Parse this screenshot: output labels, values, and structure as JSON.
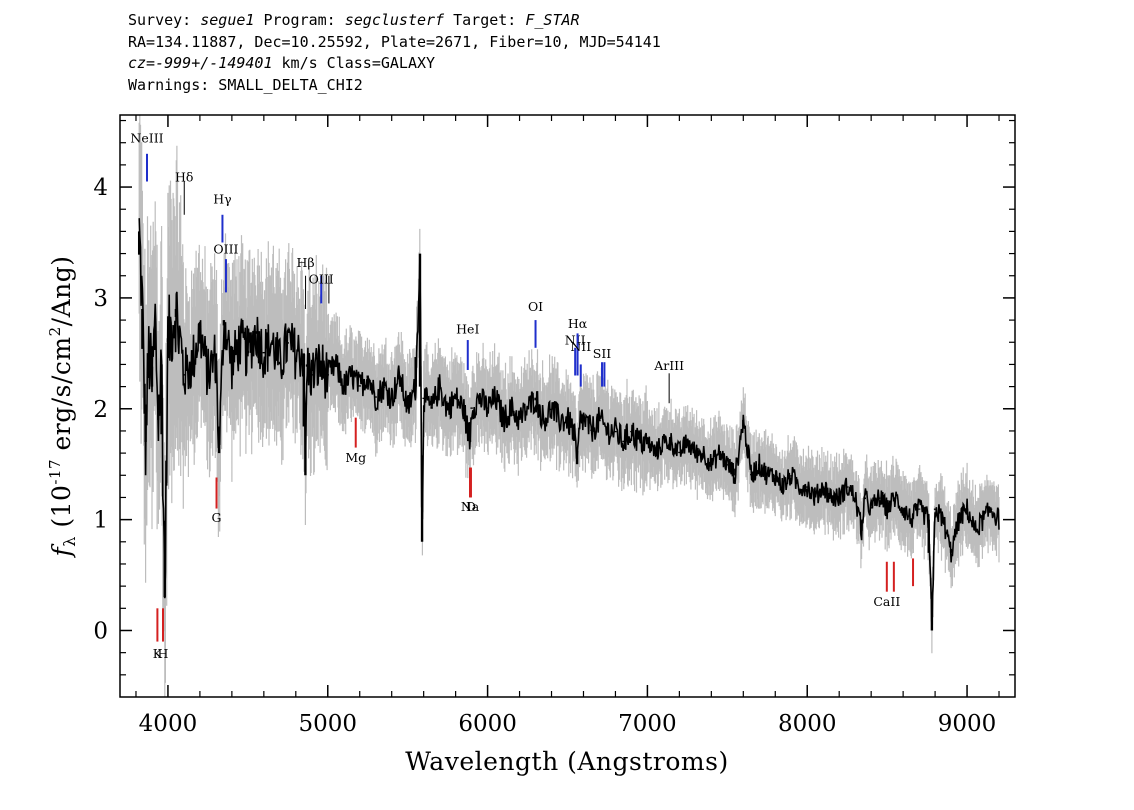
{
  "header": {
    "survey_label": "Survey: ",
    "survey": "segue1",
    "program_label": " Program: ",
    "program": "segclusterf",
    "target_label": " Target: ",
    "target": "F_STAR",
    "line2": "RA=134.11887, Dec=10.25592, Plate=2671, Fiber=10, MJD=54141",
    "cz": "cz=-999+/-149401",
    "cz_rest": " km/s Class=GALAXY",
    "warnings": "Warnings: SMALL_DELTA_CHI2"
  },
  "colors": {
    "flux": "#000000",
    "error": "#bdbdbd",
    "emission": "#1f2fcc",
    "absorption": "#d42020",
    "neutral": "#000000"
  },
  "chart_data": {
    "type": "line",
    "title": "",
    "xlabel": "Wavelength (Angstroms)",
    "ylabel": "f_λ (10^-17 erg/s/cm^2/Ang)",
    "xlim": [
      3700,
      9300
    ],
    "ylim": [
      -0.6,
      4.65
    ],
    "xticks": [
      4000,
      5000,
      6000,
      7000,
      8000,
      9000
    ],
    "yticks": [
      0,
      1,
      2,
      3,
      4
    ],
    "series": [
      {
        "role": "flux",
        "x": [
          3820,
          3840,
          3860,
          3880,
          3900,
          3920,
          3940,
          3960,
          3980,
          4000,
          4050,
          4100,
          4150,
          4200,
          4250,
          4300,
          4320,
          4350,
          4400,
          4450,
          4500,
          4550,
          4600,
          4650,
          4700,
          4750,
          4800,
          4850,
          4860,
          4870,
          4900,
          4950,
          5000,
          5050,
          5100,
          5150,
          5200,
          5250,
          5300,
          5350,
          5400,
          5450,
          5500,
          5550,
          5577,
          5590,
          5600,
          5650,
          5700,
          5750,
          5800,
          5850,
          5890,
          5900,
          5950,
          6000,
          6050,
          6100,
          6150,
          6200,
          6250,
          6300,
          6350,
          6400,
          6450,
          6500,
          6540,
          6560,
          6580,
          6600,
          6650,
          6700,
          6750,
          6800,
          6850,
          6900,
          6950,
          7000,
          7050,
          7100,
          7150,
          7200,
          7250,
          7300,
          7350,
          7400,
          7450,
          7500,
          7550,
          7600,
          7650,
          7700,
          7750,
          7800,
          7850,
          7900,
          7950,
          8000,
          8050,
          8100,
          8150,
          8200,
          8250,
          8300,
          8340,
          8360,
          8400,
          8450,
          8500,
          8550,
          8600,
          8650,
          8700,
          8760,
          8780,
          8800,
          8850,
          8900,
          8950,
          9000,
          9050,
          9100,
          9150,
          9200
        ],
        "y": [
          3.6,
          2.9,
          1.7,
          2.5,
          2.2,
          2.8,
          1.9,
          2.4,
          0.3,
          2.6,
          2.9,
          2.3,
          2.4,
          2.7,
          2.3,
          2.5,
          1.6,
          2.8,
          2.4,
          2.6,
          2.5,
          2.7,
          2.5,
          2.6,
          2.4,
          2.6,
          2.5,
          2.5,
          1.4,
          2.4,
          2.3,
          2.4,
          2.3,
          2.4,
          2.2,
          2.3,
          2.2,
          2.3,
          2.1,
          2.2,
          2.1,
          2.3,
          2.0,
          2.2,
          3.4,
          0.8,
          2.1,
          2.0,
          2.2,
          2.0,
          2.1,
          2.0,
          1.7,
          2.0,
          2.1,
          2.0,
          2.1,
          1.9,
          2.0,
          1.9,
          2.0,
          2.1,
          1.9,
          2.0,
          1.9,
          1.9,
          1.8,
          1.5,
          1.9,
          1.9,
          1.8,
          1.9,
          1.8,
          1.8,
          1.7,
          1.8,
          1.7,
          1.7,
          1.6,
          1.7,
          1.7,
          1.6,
          1.7,
          1.6,
          1.6,
          1.5,
          1.6,
          1.5,
          1.4,
          1.9,
          1.4,
          1.5,
          1.4,
          1.4,
          1.3,
          1.4,
          1.3,
          1.3,
          1.2,
          1.3,
          1.2,
          1.2,
          1.3,
          1.2,
          0.9,
          1.2,
          1.1,
          1.2,
          1.1,
          1.2,
          1.1,
          1.0,
          1.1,
          1.0,
          0.0,
          1.1,
          1.0,
          0.7,
          1.0,
          1.1,
          0.9,
          1.0,
          1.1,
          1.0
        ]
      }
    ],
    "lines": [
      {
        "label": "NeIII",
        "x": 3869,
        "y0": 4.05,
        "y1": 4.3,
        "kind": "emission",
        "label_y": 4.4
      },
      {
        "label": "Hδ",
        "x": 4102,
        "y0": 3.75,
        "y1": 4.05,
        "kind": "neutral",
        "label_y": 4.05
      },
      {
        "label": "Hγ",
        "x": 4341,
        "y0": 3.5,
        "y1": 3.75,
        "kind": "emission",
        "label_y": 3.85
      },
      {
        "label": "OIII",
        "x": 4363,
        "y0": 3.05,
        "y1": 3.35,
        "kind": "emission",
        "label_y": 3.4
      },
      {
        "label": "Hβ",
        "x": 4861,
        "y0": 2.9,
        "y1": 3.2,
        "kind": "neutral",
        "label_y": 3.28
      },
      {
        "label": "OIII",
        "x": 4959,
        "y0": 2.95,
        "y1": 3.2,
        "kind": "emission",
        "label_y": 3.13
      },
      {
        "label": "OIII",
        "x": 5007,
        "y0": 2.95,
        "y1": 3.2,
        "kind": "neutral"
      },
      {
        "label": "HeI",
        "x": 5876,
        "y0": 2.35,
        "y1": 2.62,
        "kind": "emission",
        "label_y": 2.68
      },
      {
        "label": "OI",
        "x": 6300,
        "y0": 2.55,
        "y1": 2.8,
        "kind": "emission",
        "label_y": 2.88
      },
      {
        "label": "NII",
        "x": 6548,
        "y0": 2.3,
        "y1": 2.55,
        "kind": "emission",
        "label_y": 2.58
      },
      {
        "label": "Hα",
        "x": 6563,
        "y0": 2.3,
        "y1": 2.68,
        "kind": "emission",
        "label_y": 2.73
      },
      {
        "label": "NII",
        "x": 6583,
        "y0": 2.2,
        "y1": 2.4,
        "kind": "emission",
        "label_y": 2.52
      },
      {
        "label": "SII",
        "x": 6716,
        "y0": 2.2,
        "y1": 2.42,
        "kind": "emission",
        "label_y": 2.46
      },
      {
        "label": "SII",
        "x": 6731,
        "y0": 2.2,
        "y1": 2.42,
        "kind": "emission"
      },
      {
        "label": "ArIII",
        "x": 7136,
        "y0": 2.05,
        "y1": 2.32,
        "kind": "neutral",
        "label_y": 2.35
      },
      {
        "label": "K",
        "x": 3934,
        "y0": -0.1,
        "y1": 0.2,
        "kind": "absorption",
        "label_y": -0.25
      },
      {
        "label": "H",
        "x": 3969,
        "y0": -0.1,
        "y1": 0.2,
        "kind": "absorption",
        "label_y": -0.25
      },
      {
        "label": "G",
        "x": 4304,
        "y0": 1.1,
        "y1": 1.38,
        "kind": "absorption",
        "label_y": 0.98
      },
      {
        "label": "Mg",
        "x": 5175,
        "y0": 1.65,
        "y1": 1.92,
        "kind": "absorption",
        "label_y": 1.52
      },
      {
        "label": "Na",
        "x": 5890,
        "y0": 1.2,
        "y1": 1.47,
        "kind": "absorption",
        "label_y": 1.08
      },
      {
        "label": "D",
        "x": 5896,
        "y0": 1.2,
        "y1": 1.47,
        "kind": "absorption",
        "label_y": 1.08
      },
      {
        "label": "CaII",
        "x": 8498,
        "y0": 0.35,
        "y1": 0.62,
        "kind": "absorption",
        "label_y": 0.22
      },
      {
        "label": "CaII",
        "x": 8542,
        "y0": 0.35,
        "y1": 0.62,
        "kind": "absorption"
      },
      {
        "label": "CaII",
        "x": 8662,
        "y0": 0.4,
        "y1": 0.65,
        "kind": "absorption"
      }
    ],
    "grid": false,
    "legend": "none"
  }
}
